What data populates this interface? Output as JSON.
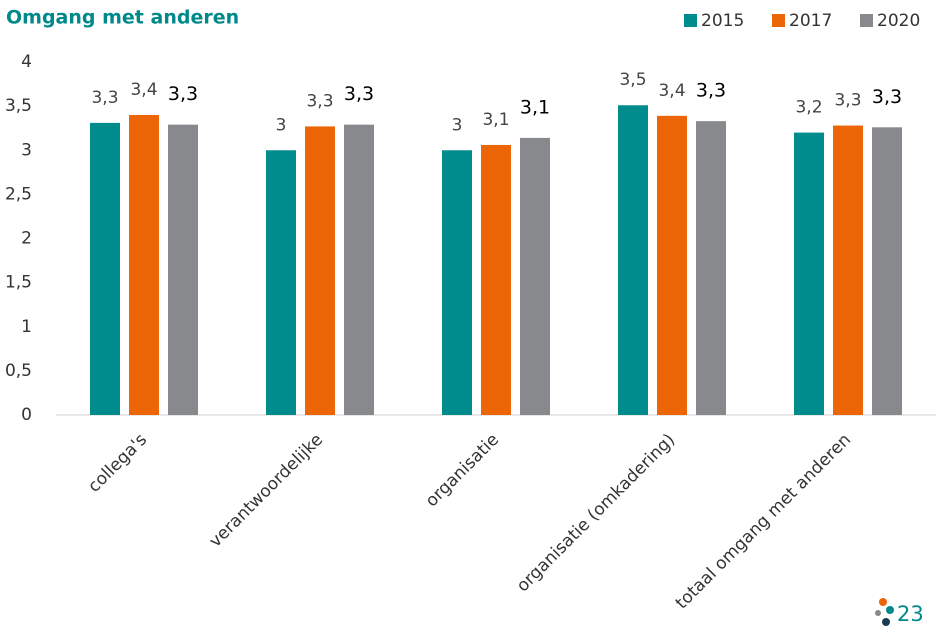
{
  "chart_data": {
    "type": "bar",
    "title": "Omgang met anderen",
    "categories": [
      "collega's",
      "verantwoordelijke",
      "organisatie",
      "organisatie (omkadering)",
      "totaal omgang met anderen"
    ],
    "series": [
      {
        "name": "2015",
        "color": "#008c8c",
        "values": [
          3.31,
          3.0,
          3.0,
          3.51,
          3.2
        ],
        "value_labels": [
          "3,3",
          "3",
          "3",
          "3,5",
          "3,2"
        ]
      },
      {
        "name": "2017",
        "color": "#ec6608",
        "values": [
          3.4,
          3.27,
          3.06,
          3.39,
          3.28
        ],
        "value_labels": [
          "3,4",
          "3,3",
          "3,1",
          "3,4",
          "3,3"
        ]
      },
      {
        "name": "2020",
        "color": "#87898c",
        "values": [
          3.29,
          3.29,
          3.14,
          3.33,
          3.26
        ],
        "value_labels": [
          "3,3",
          "3,3",
          "3,1",
          "3,3",
          "3,3"
        ]
      }
    ],
    "ylim": [
      0,
      4
    ],
    "yticks": [
      0,
      {
        "value": 0.5,
        "label": "0,5"
      },
      1,
      {
        "value": 1.5,
        "label": "1,5"
      },
      2,
      {
        "value": 2.5,
        "label": "2,5"
      },
      3,
      {
        "value": 3.5,
        "label": "3,5"
      },
      4
    ],
    "grid": false,
    "legend": "top-right"
  },
  "page_number": "23"
}
